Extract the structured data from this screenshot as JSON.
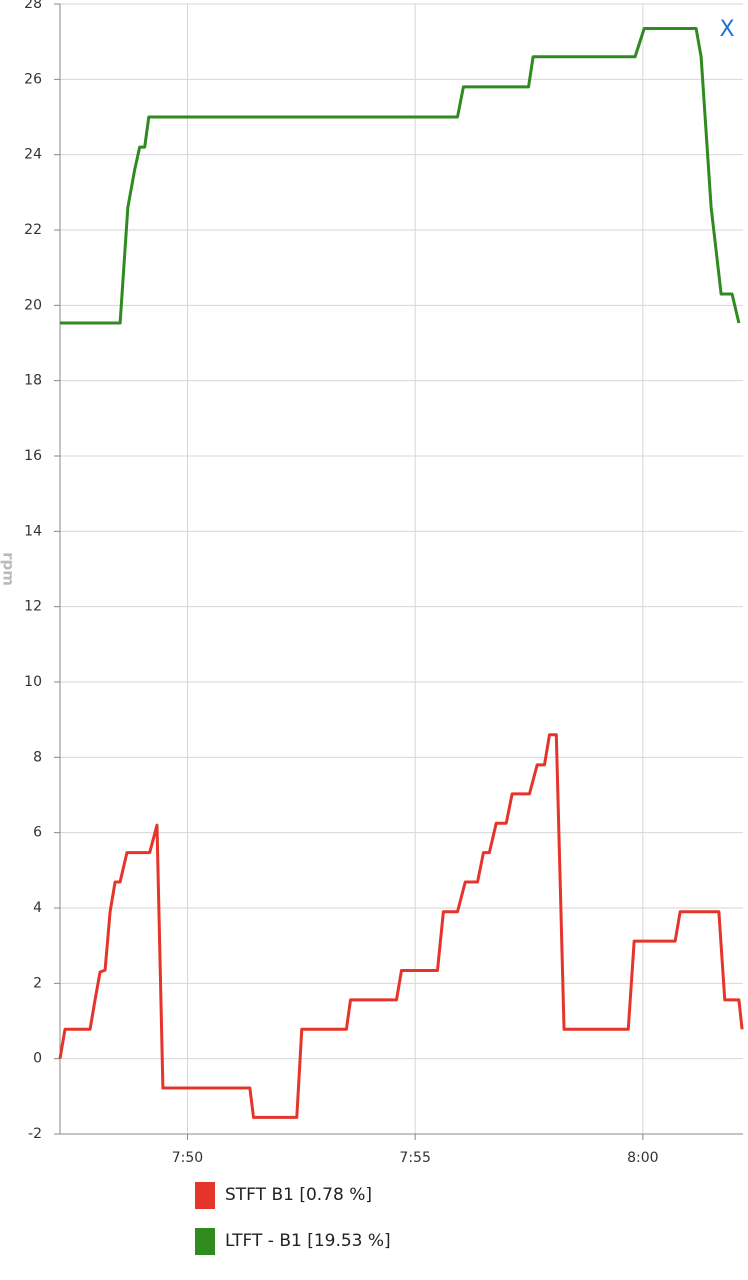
{
  "close_label": "X",
  "chart_data": {
    "type": "line",
    "y_label": "rpm",
    "xlim": [
      47.2,
      62.2
    ],
    "xticks": [
      {
        "value": 50,
        "label": "7:50"
      },
      {
        "value": 55,
        "label": "7:55"
      },
      {
        "value": 60,
        "label": "8:00"
      }
    ],
    "ylim": [
      -2,
      28
    ],
    "yticks": [
      -2,
      0,
      2,
      4,
      6,
      8,
      10,
      12,
      14,
      16,
      18,
      20,
      22,
      24,
      26,
      28
    ],
    "grid": true,
    "series": [
      {
        "name": "STFT B1 [0.78 %]",
        "color": "#e5342a",
        "x": [
          47.2,
          47.31,
          47.86,
          47.97,
          48.08,
          48.19,
          48.3,
          48.41,
          48.52,
          48.67,
          49.17,
          49.33,
          49.46,
          51.37,
          51.45,
          52.4,
          52.51,
          53.49,
          53.58,
          54.59,
          54.7,
          55.49,
          55.62,
          55.93,
          56.1,
          56.37,
          56.5,
          56.63,
          56.78,
          57.0,
          57.13,
          57.51,
          57.68,
          57.84,
          57.95,
          58.1,
          58.27,
          59.68,
          59.81,
          60.71,
          60.82,
          61.67,
          61.8,
          62.11,
          62.18
        ],
        "values": [
          0,
          0.78,
          0.78,
          1.56,
          2.3,
          2.35,
          3.9,
          4.69,
          4.69,
          5.47,
          5.47,
          6.2,
          -0.78,
          -0.78,
          -1.56,
          -1.56,
          0.78,
          0.78,
          1.56,
          1.56,
          2.34,
          2.34,
          3.9,
          3.9,
          4.69,
          4.69,
          5.47,
          5.47,
          6.25,
          6.25,
          7.03,
          7.03,
          7.8,
          7.8,
          8.6,
          8.6,
          0.78,
          0.78,
          3.12,
          3.12,
          3.9,
          3.9,
          1.56,
          1.56,
          0.78
        ]
      },
      {
        "name": "LTFT - B1 [19.53 %]",
        "color": "#2f8a1f",
        "x": [
          47.2,
          48.52,
          48.69,
          48.84,
          48.95,
          49.06,
          49.15,
          55.93,
          56.06,
          57.49,
          57.59,
          59.83,
          60.03,
          61.17,
          61.28,
          61.5,
          61.72,
          61.96,
          62.11
        ],
        "values": [
          19.53,
          19.53,
          22.6,
          23.6,
          24.2,
          24.2,
          25,
          25,
          25.8,
          25.8,
          26.6,
          26.6,
          27.35,
          27.35,
          26.6,
          22.6,
          20.3,
          20.3,
          19.53
        ]
      }
    ]
  }
}
